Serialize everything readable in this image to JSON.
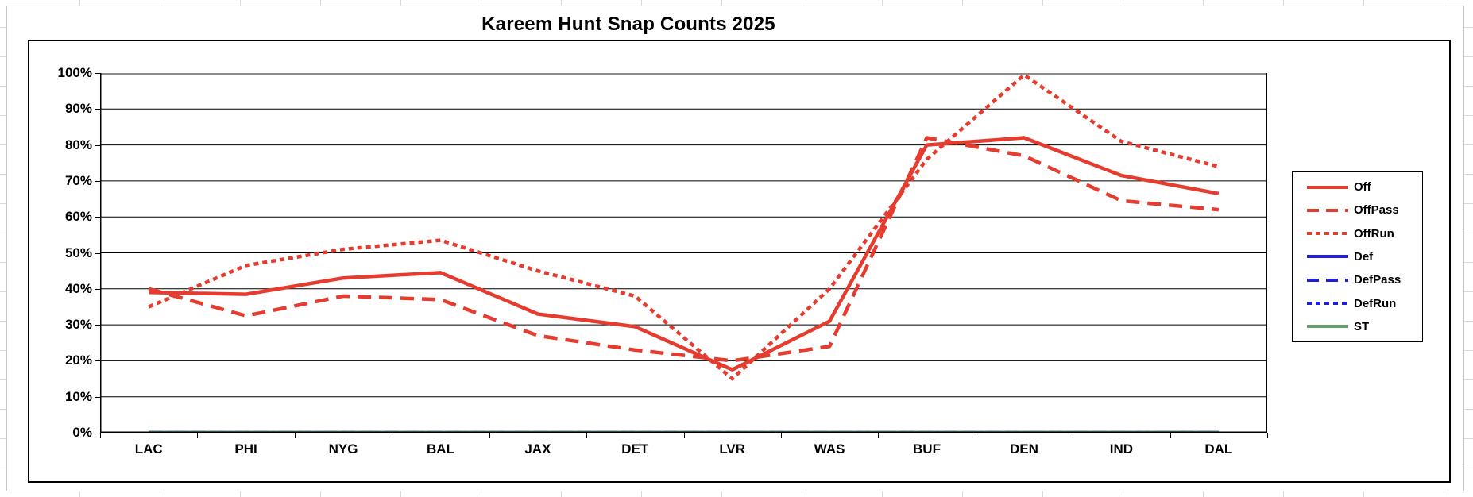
{
  "chart": {
    "title": "Kareem Hunt Snap Counts 2025"
  },
  "chart_data": {
    "type": "line",
    "title": "Kareem Hunt Snap Counts 2025",
    "categories": [
      "LAC",
      "PHI",
      "NYG",
      "BAL",
      "JAX",
      "DET",
      "LVR",
      "WAS",
      "BUF",
      "DEN",
      "IND",
      "DAL"
    ],
    "series": [
      {
        "name": "Off",
        "color": "#E63C2F",
        "dash": "solid",
        "values": [
          39,
          38.5,
          43,
          44.5,
          33,
          29.5,
          17.5,
          31,
          80,
          82,
          71.5,
          66.5
        ]
      },
      {
        "name": "OffPass",
        "color": "#E63C2F",
        "dash": "long",
        "values": [
          40,
          32.5,
          38,
          37,
          27,
          23,
          20,
          24,
          82,
          77,
          64.5,
          62
        ]
      },
      {
        "name": "OffRun",
        "color": "#E63C2F",
        "dash": "short",
        "values": [
          35,
          46.5,
          51,
          53.5,
          45,
          38,
          15,
          40,
          76,
          99.5,
          81,
          74
        ]
      },
      {
        "name": "Def",
        "color": "#1E1EDC",
        "dash": "solid",
        "values": [
          0,
          0,
          0,
          0,
          0,
          0,
          0,
          0,
          0,
          0,
          0,
          0
        ]
      },
      {
        "name": "DefPass",
        "color": "#1E1EDC",
        "dash": "long",
        "values": [
          0,
          0,
          0,
          0,
          0,
          0,
          0,
          0,
          0,
          0,
          0,
          0
        ]
      },
      {
        "name": "DefRun",
        "color": "#1E1EDC",
        "dash": "short",
        "values": [
          0,
          0,
          0,
          0,
          0,
          0,
          0,
          0,
          0,
          0,
          0,
          0
        ]
      },
      {
        "name": "ST",
        "color": "#64A06E",
        "dash": "solid",
        "values": [
          0,
          0,
          0,
          0,
          0,
          0,
          0,
          0,
          0,
          0,
          0,
          0
        ]
      }
    ],
    "ylim": [
      0,
      100
    ],
    "y_tick_labels": [
      "0%",
      "10%",
      "20%",
      "30%",
      "40%",
      "50%",
      "60%",
      "70%",
      "80%",
      "90%",
      "100%"
    ],
    "grid": true,
    "gridline_color": "#000000",
    "legend_position": "right",
    "legend_labels": [
      "Off",
      "OffPass",
      "OffRun",
      "Def",
      "DefPass",
      "DefRun",
      "ST"
    ]
  }
}
